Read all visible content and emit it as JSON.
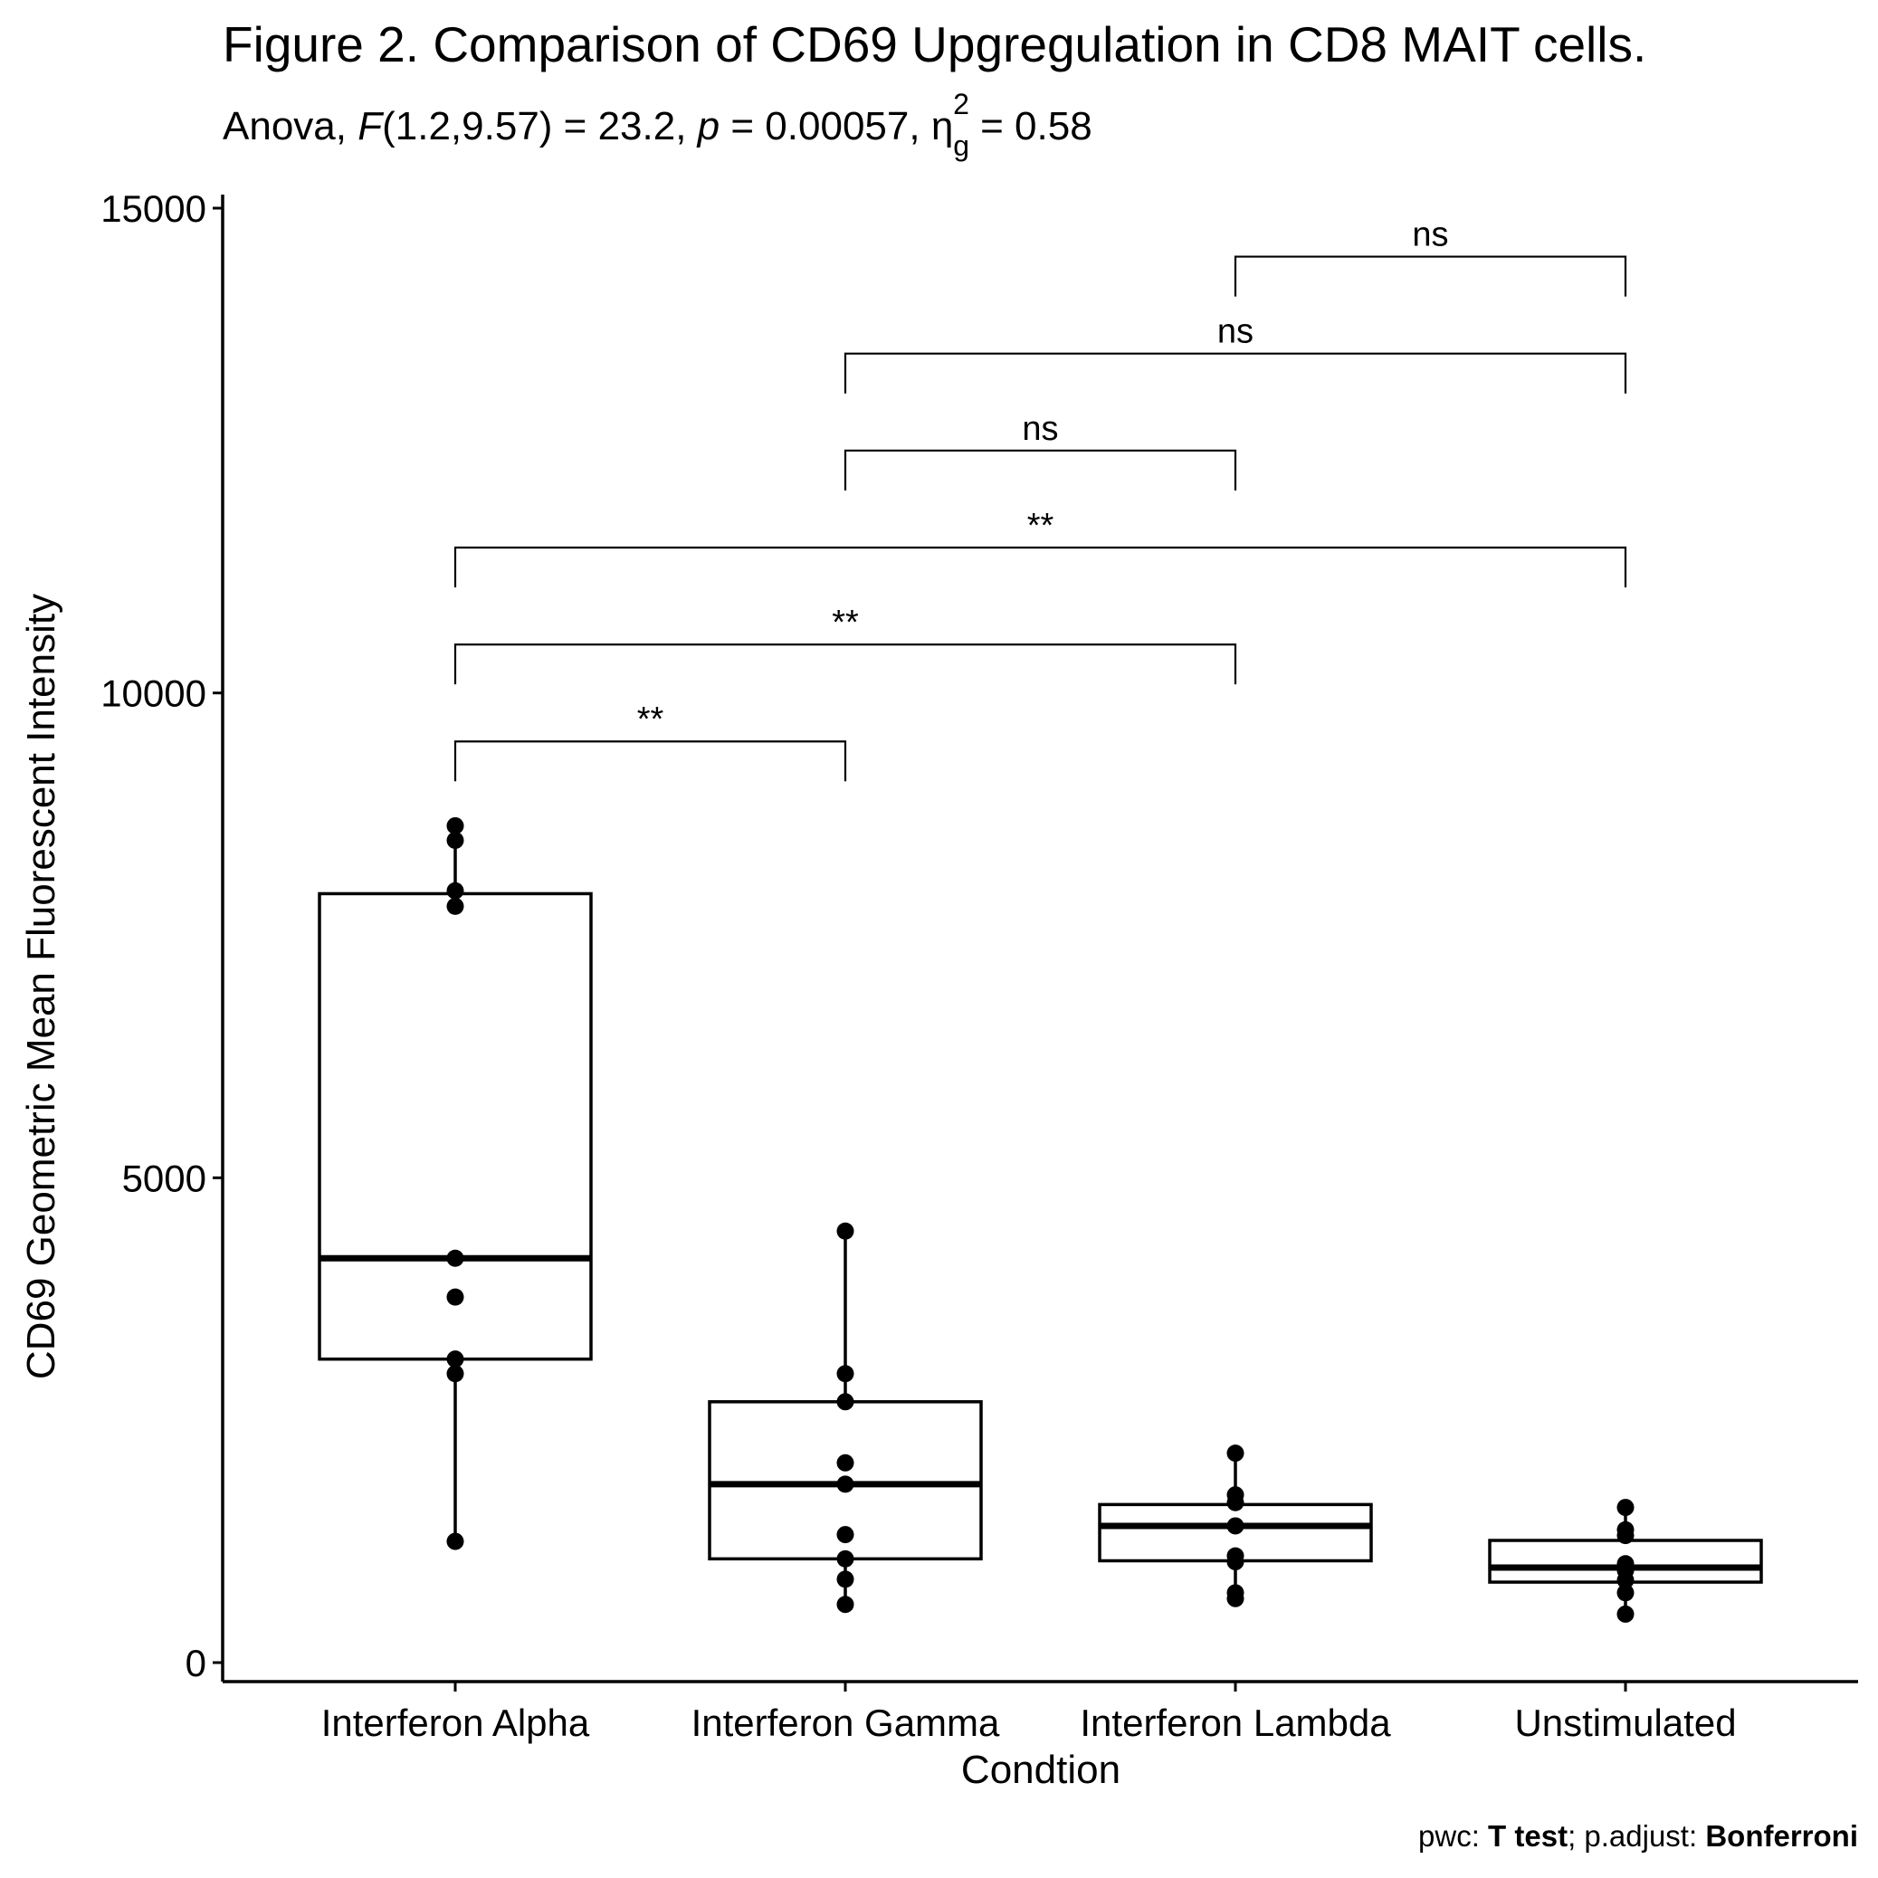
{
  "chart_data": {
    "type": "box",
    "title": "Figure 2. Comparison of CD69 Upgregulation in CD8 MAIT cells.",
    "subtitle": {
      "prefix": "Anova, ",
      "stat": "F",
      "stat_args": "(1.2,9.57) = 23.2, ",
      "p_symbol": "p",
      "p_value": " = 0.00057, ",
      "eta": "η",
      "eta_sub": "g",
      "eta_sup": "2",
      "eta_value": " = 0.58"
    },
    "xlabel": "Condtion",
    "ylabel": "CD69 Geometric Mean Fluorescent Intensity",
    "ylim": [
      -200,
      15150
    ],
    "yticks": [
      0,
      5000,
      10000,
      15000
    ],
    "ytick_labels": [
      "0",
      "5000",
      "10000",
      "15000"
    ],
    "categories": [
      "Interferon Alpha",
      "Interferon Gamma",
      "Interferon Lambda",
      "Unstimulated"
    ],
    "boxes": [
      {
        "q1": 3130,
        "median": 4170,
        "q3": 7930,
        "whisker_low": 1250,
        "whisker_high": 8630
      },
      {
        "q1": 1070,
        "median": 1840,
        "q3": 2690,
        "whisker_low": 600,
        "whisker_high": 4450
      },
      {
        "q1": 1050,
        "median": 1410,
        "q3": 1630,
        "whisker_low": 660,
        "whisker_high": 2160
      },
      {
        "q1": 830,
        "median": 980,
        "q3": 1260,
        "whisker_low": 500,
        "whisker_high": 1600
      }
    ],
    "points": [
      [
        8630,
        8480,
        7960,
        7800,
        4170,
        3770,
        3130,
        2980,
        1250
      ],
      [
        4450,
        2980,
        2690,
        2060,
        1840,
        1320,
        1070,
        860,
        600
      ],
      [
        2160,
        1730,
        1650,
        1410,
        1100,
        1040,
        720,
        660
      ],
      [
        1600,
        1370,
        1310,
        1020,
        950,
        850,
        720,
        500
      ]
    ],
    "comparisons": [
      {
        "group1": 0,
        "group2": 1,
        "y": 9500,
        "label": "**"
      },
      {
        "group1": 0,
        "group2": 2,
        "y": 10500,
        "label": "**"
      },
      {
        "group1": 0,
        "group2": 3,
        "y": 11500,
        "label": "**"
      },
      {
        "group1": 1,
        "group2": 2,
        "y": 12500,
        "label": "ns"
      },
      {
        "group1": 1,
        "group2": 3,
        "y": 13500,
        "label": "ns"
      },
      {
        "group1": 2,
        "group2": 3,
        "y": 14500,
        "label": "ns"
      }
    ],
    "caption": {
      "pwc_label": "pwc: ",
      "pwc_value": "T test",
      "sep": "; p.adjust: ",
      "adjust_value": "Bonferroni"
    },
    "colors": {
      "ink": "#000000",
      "background": "#ffffff",
      "box_fill": "#ffffff"
    },
    "grid": false
  }
}
